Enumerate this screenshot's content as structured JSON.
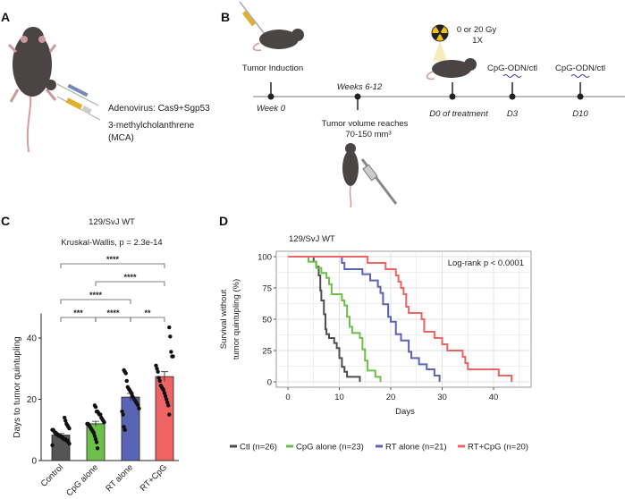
{
  "panels": {
    "a": {
      "label": "A",
      "injection_1": "Adenovirus: Cas9+Sgp53",
      "injection_2_line1": "3-methylcholanthrene",
      "injection_2_line2": "(MCA)",
      "icons": [
        "mouse-top-view-icon",
        "syringe-blue-icon",
        "syringe-yellow-icon"
      ]
    },
    "b": {
      "label": "B",
      "events": [
        {
          "top_label": "Tumor Induction",
          "time_label": "Week 0"
        },
        {
          "top_label": "Weeks 6-12",
          "bottom_line1": "Tumor volume reaches",
          "bottom_line2": "70-150 mm³"
        },
        {
          "top_line1": "0 or 20 Gy",
          "top_line2": "1X",
          "time_label": "D0 of treatment"
        },
        {
          "top_label": "CpG-ODN/ctl",
          "time_label": "D3"
        },
        {
          "top_label": "CpG-ODN/ctl",
          "time_label": "D10"
        }
      ],
      "icons": [
        "mouse-icon",
        "syringe-icon",
        "radiation-icon",
        "oligo-icon",
        "caliper-icon"
      ]
    },
    "c": {
      "label": "C"
    },
    "d": {
      "label": "D"
    }
  },
  "chart_data": [
    {
      "type": "bar",
      "title": "129/SvJ WT",
      "subtitle": "Kruskal-Wallis, p = 2.3e-14",
      "xlabel": "",
      "ylabel": "Days to tumor quintupling",
      "ylim": [
        0,
        48
      ],
      "yticks": [
        "0",
        "20",
        "40"
      ],
      "categories": [
        "Control",
        "CpG alone",
        "RT alone",
        "RT+CpG"
      ],
      "values": [
        8.3,
        12.0,
        20.7,
        27.4
      ],
      "errors": [
        0.5,
        0.8,
        1.2,
        1.6
      ],
      "colors": [
        "#555555",
        "#6cc04a",
        "#5a64b4",
        "#ef6363"
      ],
      "points": [
        [
          5,
          5.5,
          6,
          6.5,
          6.5,
          7,
          7,
          7,
          7.5,
          7.5,
          8,
          8,
          8,
          8.5,
          8.5,
          9,
          9,
          9.5,
          10,
          10,
          10.5,
          11,
          11.5,
          12,
          13,
          14
        ],
        [
          4,
          6,
          7,
          8,
          9,
          9.5,
          10,
          10.5,
          11,
          11.5,
          12,
          12,
          12.5,
          13,
          13.5,
          14,
          15,
          15,
          15.5,
          16,
          16,
          17.5,
          18
        ],
        [
          10,
          11,
          15,
          16,
          17,
          18,
          18.5,
          19,
          19.5,
          20,
          20.5,
          21,
          22,
          22.5,
          23,
          23.5,
          24,
          26,
          28.5,
          29,
          29.5
        ],
        [
          15,
          18,
          19,
          20,
          21,
          22,
          23,
          23.5,
          24,
          24.5,
          26,
          27,
          29,
          30,
          31,
          34,
          34,
          35.5,
          40.5,
          43.5
        ]
      ],
      "comparisons": [
        {
          "groups": [
            "Control",
            "CpG alone"
          ],
          "stars": "***"
        },
        {
          "groups": [
            "CpG alone",
            "RT alone"
          ],
          "stars": "****"
        },
        {
          "groups": [
            "RT alone",
            "RT+CpG"
          ],
          "stars": "**"
        },
        {
          "groups": [
            "Control",
            "RT alone"
          ],
          "stars": "****"
        },
        {
          "groups": [
            "CpG alone",
            "RT+CpG"
          ],
          "stars": "****"
        },
        {
          "groups": [
            "Control",
            "RT+CpG"
          ],
          "stars": "****"
        }
      ]
    },
    {
      "type": "line",
      "title": "129/SvJ WT",
      "annotation": "Log-rank  p < 0.0001",
      "xlabel": "Days",
      "ylabel_line1": "Survival without",
      "ylabel_line2": "tumor quintupling (%)",
      "xlim": [
        -3,
        47
      ],
      "ylim": [
        -5,
        105
      ],
      "xticks": [
        "0",
        "10",
        "20",
        "30",
        "40"
      ],
      "yticks": [
        "0",
        "25",
        "50",
        "75",
        "100"
      ],
      "grid": true,
      "legend": "bottom",
      "series": [
        {
          "name": "Ctl (n=26)",
          "color": "#4d4d4d",
          "x": [
            0,
            5,
            5.5,
            6,
            6.3,
            6.5,
            7,
            7.3,
            7.5,
            8,
            9,
            9.5,
            10,
            10.5,
            11,
            11.5,
            12.5,
            14
          ],
          "y": [
            100,
            96,
            92,
            85,
            73,
            65,
            54,
            42,
            38,
            35,
            31,
            27,
            19,
            12,
            8,
            4,
            4,
            0
          ]
        },
        {
          "name": "CpG alone (n=23)",
          "color": "#6cc04a",
          "x": [
            0,
            4,
            5.5,
            6.5,
            7.5,
            8,
            8.5,
            10.5,
            11,
            11.5,
            12,
            12.5,
            14,
            14.5,
            15,
            15.5,
            17,
            18
          ],
          "y": [
            100,
            96,
            91,
            87,
            83,
            78,
            70,
            65,
            61,
            52,
            44,
            39,
            35,
            26,
            17,
            9,
            4,
            0
          ]
        },
        {
          "name": "RT alone (n=21)",
          "color": "#5a64b4",
          "x": [
            0,
            10,
            10.5,
            11,
            14.5,
            16,
            17.5,
            18,
            18.5,
            19.5,
            20,
            21,
            22,
            23.5,
            24,
            25.5,
            27,
            28.5,
            29.5
          ],
          "y": [
            100,
            100,
            95,
            90,
            86,
            81,
            76,
            71,
            62,
            52,
            48,
            38,
            33,
            24,
            19,
            14,
            10,
            5,
            0
          ]
        },
        {
          "name": "RT+CpG (n=20)",
          "color": "#ef6363",
          "x": [
            0,
            15,
            15.5,
            19,
            21,
            21.5,
            22,
            22.5,
            23,
            23.5,
            26,
            26.5,
            28.5,
            30,
            31,
            34,
            34.5,
            35,
            41,
            43.5
          ],
          "y": [
            100,
            100,
            95,
            90,
            85,
            80,
            75,
            70,
            60,
            55,
            50,
            40,
            35,
            30,
            25,
            20,
            15,
            10,
            5,
            0
          ]
        }
      ]
    }
  ]
}
